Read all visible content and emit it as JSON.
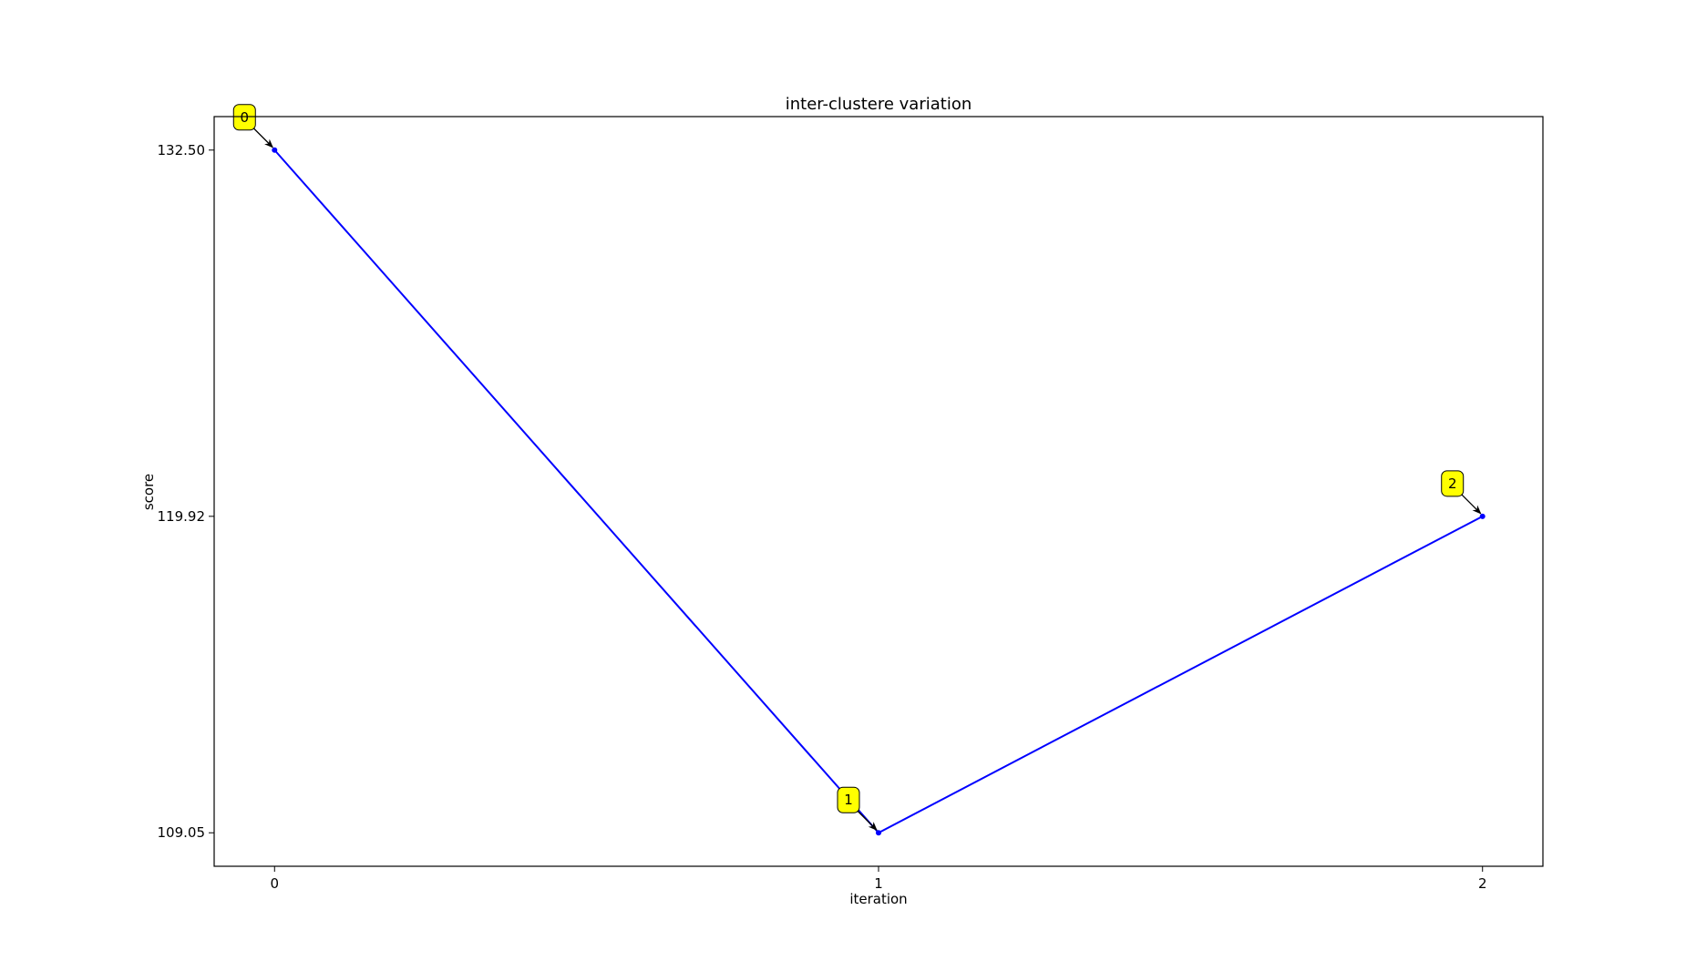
{
  "chart_data": {
    "type": "line",
    "title": "inter-clustere variation",
    "xlabel": "iteration",
    "ylabel": "score",
    "x": [
      0,
      1,
      2
    ],
    "xticks": [
      "0",
      "1",
      "2"
    ],
    "yticks": [
      "109.05",
      "119.92",
      "132.50"
    ],
    "ytick_values": [
      109.05,
      119.92,
      132.5
    ],
    "xlim": [
      -0.1,
      2.1
    ],
    "ylim": [
      107.9,
      133.65
    ],
    "grid": false,
    "series": [
      {
        "values": [
          132.5,
          109.05,
          119.92
        ],
        "color": "#0000ff",
        "marker": "point"
      }
    ],
    "annotations": [
      {
        "text": "0",
        "x": 0,
        "y": 132.5
      },
      {
        "text": "1",
        "x": 1,
        "y": 109.05
      },
      {
        "text": "2",
        "x": 2,
        "y": 119.92
      }
    ],
    "annotation_style": {
      "box_color": "#ffff00",
      "edge_color": "#000000",
      "arrow_color": "#000000"
    }
  }
}
